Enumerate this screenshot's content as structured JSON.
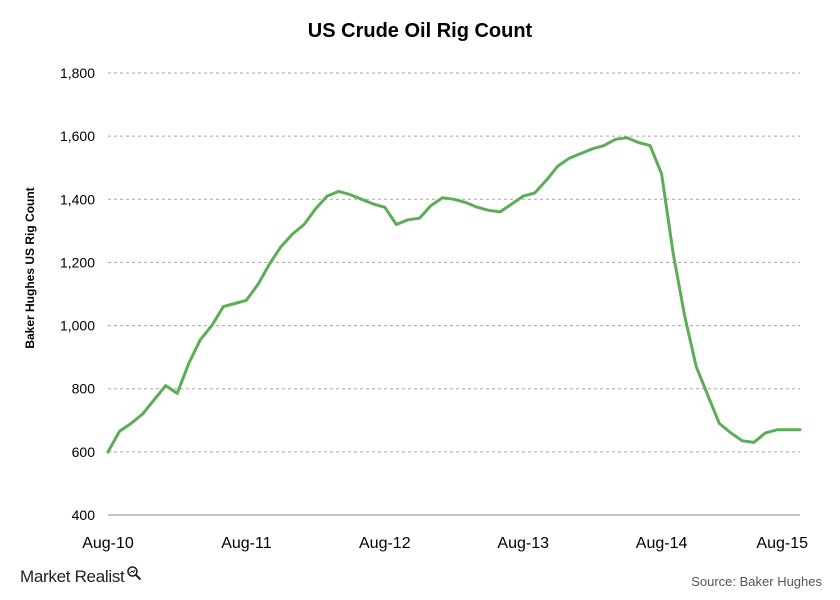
{
  "chart_data": {
    "type": "line",
    "title": "US Crude Oil Rig Count",
    "ylabel": "Baker Hughes US Rig Count",
    "xlabel": "",
    "ylim": [
      400,
      1800
    ],
    "yticks": [
      "400",
      "600",
      "800",
      "1,000",
      "1,200",
      "1,400",
      "1,600",
      "1,800"
    ],
    "ytick_values": [
      400,
      600,
      800,
      1000,
      1200,
      1400,
      1600,
      1800
    ],
    "xticks": [
      "Aug-10",
      "Aug-11",
      "Aug-12",
      "Aug-13",
      "Aug-14",
      "Aug-15"
    ],
    "xtick_values": [
      "2010-08",
      "2011-08",
      "2012-08",
      "2013-08",
      "2014-08",
      "2015-08"
    ],
    "grid": true,
    "series": [
      {
        "color": "#5cad56",
        "x": [
          "2010-08",
          "2010-09",
          "2010-10",
          "2010-11",
          "2010-12",
          "2011-01",
          "2011-02",
          "2011-03",
          "2011-04",
          "2011-05",
          "2011-06",
          "2011-07",
          "2011-08",
          "2011-09",
          "2011-10",
          "2011-11",
          "2011-12",
          "2012-01",
          "2012-02",
          "2012-03",
          "2012-04",
          "2012-05",
          "2012-06",
          "2012-07",
          "2012-08",
          "2012-09",
          "2012-10",
          "2012-11",
          "2012-12",
          "2013-01",
          "2013-02",
          "2013-03",
          "2013-04",
          "2013-05",
          "2013-06",
          "2013-07",
          "2013-08",
          "2013-09",
          "2013-10",
          "2013-11",
          "2013-12",
          "2014-01",
          "2014-02",
          "2014-03",
          "2014-04",
          "2014-05",
          "2014-06",
          "2014-07",
          "2014-08",
          "2014-09",
          "2014-10",
          "2014-11",
          "2014-12",
          "2015-01",
          "2015-02",
          "2015-03",
          "2015-04",
          "2015-05",
          "2015-06",
          "2015-07",
          "2015-08"
        ],
        "values": [
          600,
          665,
          690,
          720,
          765,
          810,
          785,
          880,
          955,
          1000,
          1060,
          1070,
          1080,
          1130,
          1195,
          1250,
          1290,
          1320,
          1370,
          1410,
          1425,
          1415,
          1400,
          1385,
          1375,
          1320,
          1335,
          1340,
          1380,
          1405,
          1400,
          1390,
          1375,
          1365,
          1360,
          1385,
          1410,
          1420,
          1460,
          1505,
          1530,
          1545,
          1560,
          1570,
          1590,
          1595,
          1580,
          1570,
          1480,
          1230,
          1030,
          870,
          780,
          690,
          660,
          635,
          630,
          660,
          670,
          670,
          670
        ]
      }
    ]
  },
  "brand": {
    "name": "Market Realist"
  },
  "source": "Source: Baker Hughes"
}
